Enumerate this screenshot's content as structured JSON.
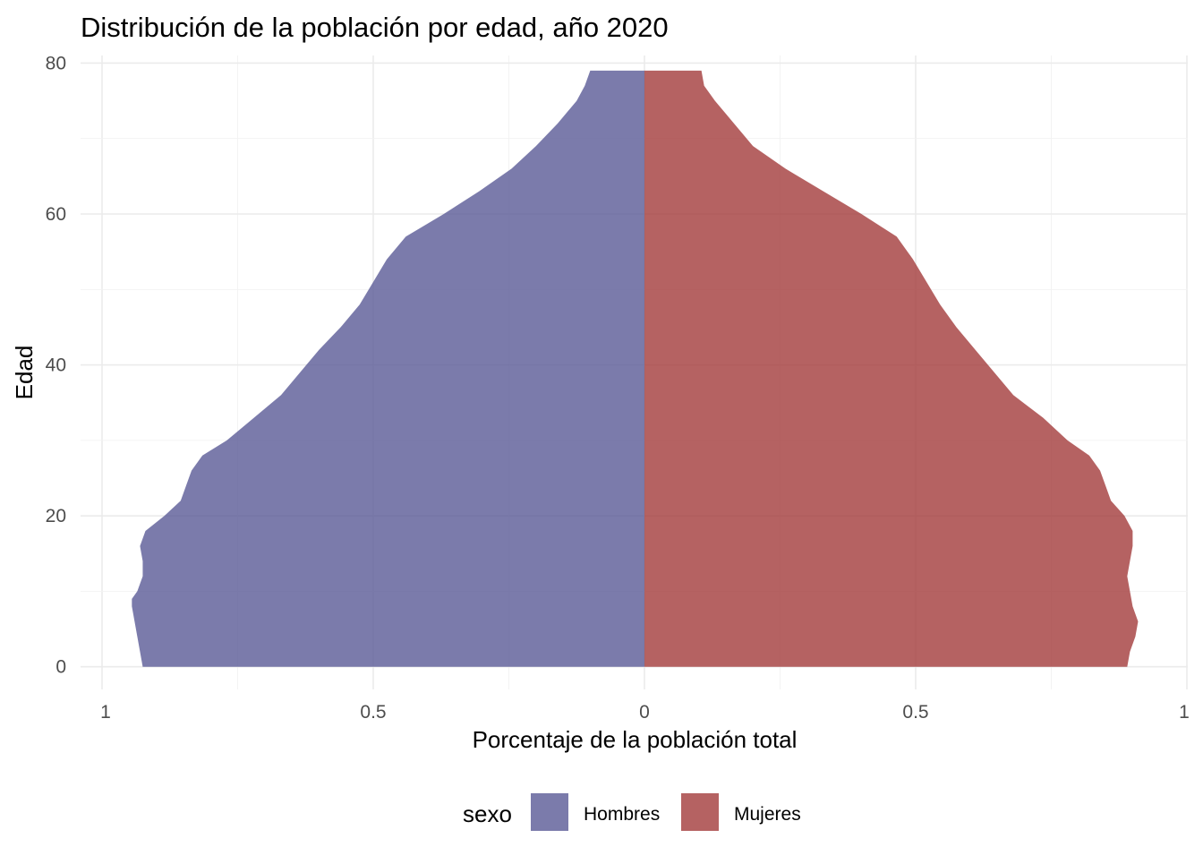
{
  "chart_data": {
    "type": "area",
    "orientation": "horizontal-pyramid",
    "title": "Distribución de la población por edad, año 2020",
    "xlabel": "Porcentaje de la población total",
    "ylabel": "Edad",
    "xlim": [
      -1.0,
      1.0
    ],
    "ylim": [
      -3,
      81
    ],
    "x_ticks": [
      {
        "value": -1.0,
        "label": "1"
      },
      {
        "value": -0.5,
        "label": "0.5"
      },
      {
        "value": 0.0,
        "label": "0"
      },
      {
        "value": 0.5,
        "label": "0.5"
      },
      {
        "value": 1.0,
        "label": "1"
      }
    ],
    "y_ticks": [
      {
        "value": 0,
        "label": "0"
      },
      {
        "value": 20,
        "label": "20"
      },
      {
        "value": 40,
        "label": "40"
      },
      {
        "value": 60,
        "label": "60"
      },
      {
        "value": 80,
        "label": "80"
      }
    ],
    "grid": true,
    "legend": {
      "title": "sexo",
      "position": "bottom"
    },
    "series": [
      {
        "name": "Hombres",
        "color": "#5a5a96",
        "opacity": 0.8,
        "side": "left",
        "ages": [
          0,
          2,
          4,
          6,
          8,
          9,
          10,
          12,
          14,
          16,
          18,
          20,
          22,
          24,
          26,
          28,
          30,
          33,
          36,
          39,
          42,
          45,
          48,
          51,
          54,
          57,
          60,
          63,
          66,
          69,
          72,
          75,
          77,
          79
        ],
        "values": [
          0.925,
          0.93,
          0.935,
          0.94,
          0.945,
          0.945,
          0.935,
          0.925,
          0.925,
          0.93,
          0.92,
          0.885,
          0.855,
          0.845,
          0.835,
          0.815,
          0.77,
          0.72,
          0.67,
          0.635,
          0.6,
          0.56,
          0.525,
          0.5,
          0.475,
          0.44,
          0.37,
          0.305,
          0.245,
          0.2,
          0.16,
          0.125,
          0.11,
          0.1
        ]
      },
      {
        "name": "Mujeres",
        "color": "#a33b3b",
        "opacity": 0.8,
        "side": "right",
        "ages": [
          0,
          2,
          4,
          6,
          8,
          10,
          12,
          14,
          16,
          18,
          20,
          22,
          24,
          26,
          28,
          30,
          33,
          36,
          39,
          42,
          45,
          48,
          51,
          54,
          57,
          60,
          63,
          66,
          69,
          72,
          75,
          77,
          79
        ],
        "values": [
          0.89,
          0.895,
          0.905,
          0.91,
          0.9,
          0.895,
          0.89,
          0.895,
          0.9,
          0.9,
          0.885,
          0.86,
          0.85,
          0.84,
          0.82,
          0.78,
          0.735,
          0.68,
          0.645,
          0.61,
          0.575,
          0.545,
          0.52,
          0.495,
          0.465,
          0.4,
          0.33,
          0.26,
          0.2,
          0.165,
          0.13,
          0.11,
          0.105
        ]
      }
    ]
  }
}
